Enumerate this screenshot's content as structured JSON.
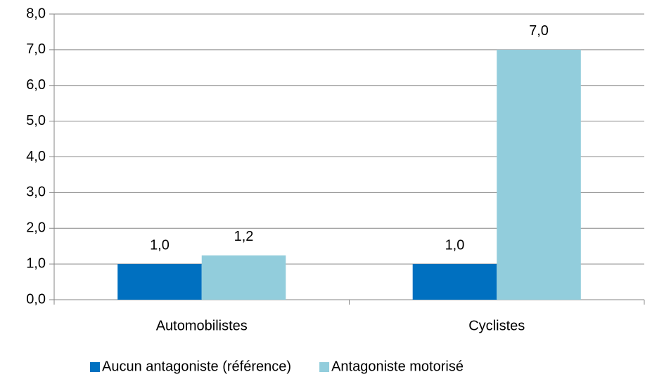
{
  "chart_data": {
    "type": "bar",
    "categories": [
      "Automobilistes",
      "Cyclistes"
    ],
    "series": [
      {
        "name": "Aucun antagoniste (référence)",
        "color": "#0070c0",
        "values": [
          1.0,
          1.0
        ],
        "value_labels": [
          "1,0",
          "1,0"
        ]
      },
      {
        "name": "Antagoniste motorisé",
        "color": "#92cddc",
        "values": [
          1.24,
          7.0
        ],
        "value_labels": [
          "1,2",
          "7,0"
        ]
      }
    ],
    "ylim": [
      0,
      8
    ],
    "yticks": [
      {
        "value": 0,
        "label": "0,0"
      },
      {
        "value": 1,
        "label": "1,0"
      },
      {
        "value": 2,
        "label": "2,0"
      },
      {
        "value": 3,
        "label": "3,0"
      },
      {
        "value": 4,
        "label": "4,0"
      },
      {
        "value": 5,
        "label": "5,0"
      },
      {
        "value": 6,
        "label": "6,0"
      },
      {
        "value": 7,
        "label": "7,0"
      },
      {
        "value": 8,
        "label": "8,0"
      }
    ],
    "grid": true,
    "legend": "bottom"
  }
}
